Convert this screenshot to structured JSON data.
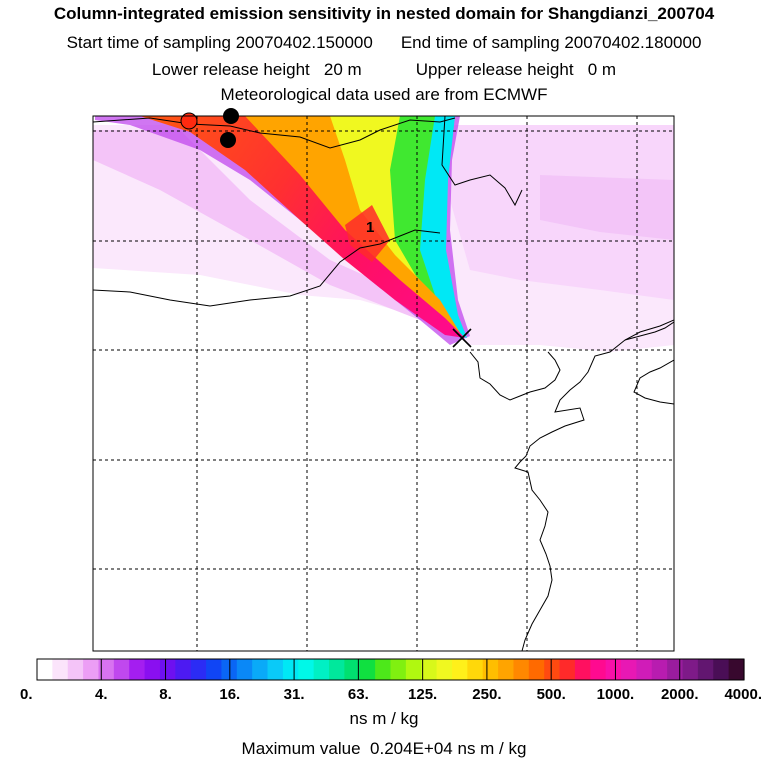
{
  "header": {
    "title": "Column-integrated emission sensitivity in nested domain for Shangdianzi_200704",
    "start_label": "Start time of sampling",
    "start_value": "20070402.150000",
    "end_label": "End time of sampling",
    "end_value": "20070402.180000",
    "lower_label": "Lower release height",
    "lower_value": "20 m",
    "upper_label": "Upper release height",
    "upper_value": "0 m",
    "met_text": "Meteorological data used are from ECMWF"
  },
  "chart_data": {
    "type": "heatmap",
    "title": "Column-integrated emission sensitivity in nested domain for Shangdianzi_200704",
    "units": "ns m / kg",
    "scale": "logarithmic",
    "colorbar_ticks": [
      "0.",
      "4.",
      "8.",
      "16.",
      "31.",
      "63.",
      "125.",
      "250.",
      "500.",
      "1000.",
      "2000.",
      "4000."
    ],
    "colorbar_tick_values": [
      0,
      4,
      8,
      16,
      31,
      63,
      125,
      250,
      500,
      1000,
      2000,
      4000
    ],
    "colorbar_colors": [
      "#ffffff",
      "#fbe4fb",
      "#f4c4f8",
      "#ec9ef5",
      "#d873f0",
      "#c048ee",
      "#a41ef0",
      "#8a0ff0",
      "#6e10f0",
      "#4d1af2",
      "#2b2cf5",
      "#1045f5",
      "#0a66f5",
      "#0a88f7",
      "#0aaaf8",
      "#0acaf8",
      "#00e8f5",
      "#00f8e8",
      "#00f0c4",
      "#00e89c",
      "#00e070",
      "#10e040",
      "#4de81a",
      "#80f010",
      "#b0f810",
      "#d8f81a",
      "#f0f820",
      "#fff01a",
      "#ffd80a",
      "#ffbe00",
      "#ffa400",
      "#ff8800",
      "#ff6a00",
      "#ff4a10",
      "#ff2a2a",
      "#ff1060",
      "#ff0a90",
      "#f810a8",
      "#e818b4",
      "#d01cb8",
      "#b81cb0",
      "#9a1c9e",
      "#7e1a88",
      "#621670",
      "#4a0e56",
      "#38082e"
    ],
    "maximum_label": "Maximum value",
    "maximum_value": "0.204E+04",
    "maximum_units": "ns m / kg",
    "labels": [
      {
        "text": "1"
      }
    ]
  }
}
